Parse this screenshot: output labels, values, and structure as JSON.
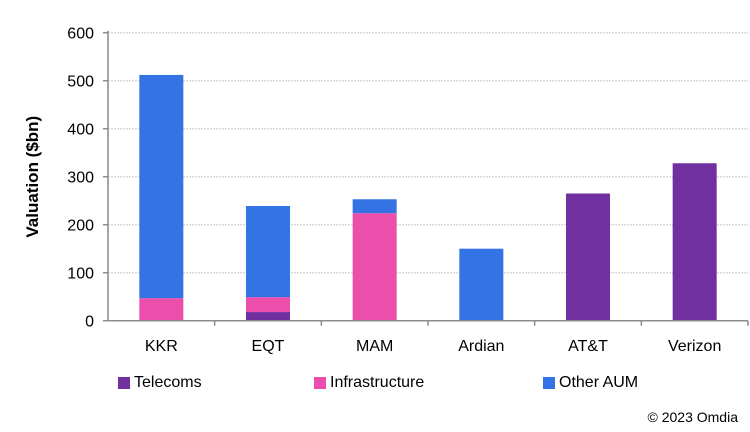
{
  "chart_data": {
    "type": "bar",
    "stacked": true,
    "title": "",
    "xlabel": "",
    "ylabel": "Valuation ($bn)",
    "ylim": [
      0,
      600
    ],
    "yticks": [
      0,
      100,
      200,
      300,
      400,
      500,
      600
    ],
    "grid": true,
    "legend_placement": "bottom",
    "categories": [
      "KKR",
      "EQT",
      "MAM",
      "Ardian",
      "AT&T",
      "Verizon"
    ],
    "series": [
      {
        "name": "Telecoms",
        "color": "#7030A0",
        "values": [
          0,
          18,
          0,
          0,
          265,
          328
        ]
      },
      {
        "name": "Infrastructure",
        "color": "#EB4EAB",
        "values": [
          47,
          31,
          224,
          0,
          0,
          0
        ]
      },
      {
        "name": "Other AUM",
        "color": "#3373E3",
        "values": [
          465,
          190,
          29,
          150,
          0,
          0
        ]
      }
    ]
  },
  "footer": {
    "copyright": "© 2023 Omdia"
  }
}
